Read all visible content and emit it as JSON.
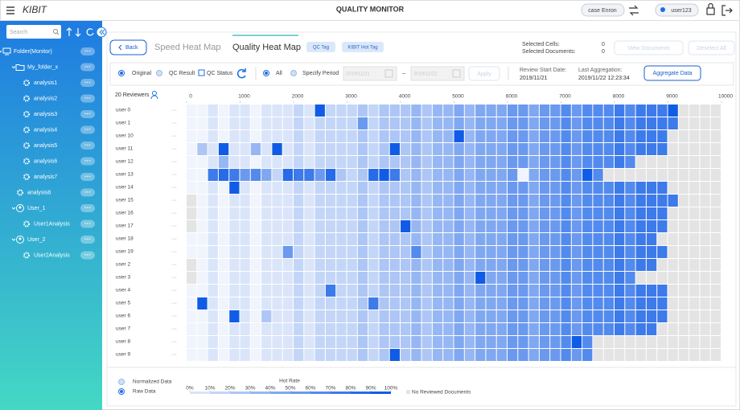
{
  "header": {
    "logo": "KIBIT",
    "title": "QUALITY MONITOR",
    "case": "case Enron",
    "user": "user123"
  },
  "sidebar": {
    "search_placeholder": "Search",
    "more_label": "···",
    "tree": [
      {
        "label": "Folder(Monitor)",
        "icon": "monitor",
        "children": [
          {
            "label": "My_folder_x",
            "icon": "folder",
            "children": [
              {
                "label": "analysis1",
                "icon": "gear"
              },
              {
                "label": "analysis2",
                "icon": "gear"
              },
              {
                "label": "analysis3",
                "icon": "gear"
              },
              {
                "label": "analysis4",
                "icon": "gear"
              },
              {
                "label": "analysis5",
                "icon": "gear"
              },
              {
                "label": "analysis6",
                "icon": "gear"
              },
              {
                "label": "analysis7",
                "icon": "gear"
              }
            ]
          },
          {
            "label": "analysis8",
            "icon": "gear"
          },
          {
            "label": "User_1",
            "icon": "user",
            "children": [
              {
                "label": "User1Analysis",
                "icon": "gear"
              }
            ]
          },
          {
            "label": "User_2",
            "icon": "user",
            "children": [
              {
                "label": "User2Analysis",
                "icon": "gear"
              }
            ]
          }
        ]
      }
    ]
  },
  "toolbar": {
    "back": "Back",
    "tabs": [
      "Speed Heat Map",
      "Quality Heat Map"
    ],
    "active_tab": 1,
    "tags": [
      "QC Tag",
      "KIBIT Hot Tag"
    ],
    "selected_cells_label": "Selected Cells:",
    "selected_cells": 0,
    "selected_documents_label": "Selected Documents:",
    "selected_documents": 0,
    "view_documents": "View Documents",
    "deselect_all": "Deselect All"
  },
  "filters": {
    "source_options": [
      "Original",
      "QC Result"
    ],
    "source_selected": 0,
    "qc_status": "QC Status",
    "period_options": [
      "All",
      "Specify Period"
    ],
    "period_selected": 0,
    "date_from": "2019/11/21",
    "date_separator": "~",
    "date_to": "2019/11/22",
    "apply": "Apply",
    "review_start_label": "Review Start Date:",
    "review_start": "2019/11/21",
    "last_aggregation_label": "Last Aggregation:",
    "last_aggregation": "2019/11/22 12:23:34",
    "aggregate": "Aggregate Data"
  },
  "chart_data": {
    "type": "heatmap",
    "reviewers_label": "20 Reviewers",
    "row_menu_label": "···",
    "xlim": [
      0,
      10000
    ],
    "xticks": [
      0,
      1000,
      2000,
      3000,
      4000,
      5000,
      6000,
      7000,
      8000,
      9000,
      10000
    ],
    "color_low": "#f0f4fc",
    "color_high": "#105ce6",
    "no_data_color": "#e4e4e4",
    "categories": [
      "user 0",
      "user 1",
      "user 10",
      "user 11",
      "user 12",
      "user 13",
      "user 14",
      "user 15",
      "user 16",
      "user 17",
      "user 18",
      "user 19",
      "user 2",
      "user 3",
      "user 4",
      "user 5",
      "user 6",
      "user 7",
      "user 8",
      "user 9"
    ],
    "values": [
      [
        0,
        0,
        10,
        0,
        10,
        10,
        0,
        10,
        10,
        10,
        20,
        10,
        100,
        20,
        20,
        20,
        30,
        20,
        30,
        30,
        30,
        40,
        30,
        40,
        40,
        50,
        40,
        50,
        50,
        50,
        60,
        60,
        50,
        60,
        60,
        70,
        60,
        70,
        70,
        70,
        80,
        70,
        80,
        80,
        80,
        100,
        null,
        null,
        null,
        null
      ],
      [
        0,
        0,
        10,
        0,
        10,
        10,
        0,
        10,
        10,
        10,
        20,
        10,
        20,
        20,
        20,
        20,
        60,
        20,
        30,
        30,
        30,
        40,
        30,
        40,
        40,
        50,
        40,
        50,
        50,
        50,
        60,
        60,
        50,
        60,
        60,
        70,
        60,
        70,
        70,
        70,
        80,
        70,
        80,
        80,
        80,
        80,
        null,
        null,
        null,
        null
      ],
      [
        0,
        0,
        10,
        0,
        10,
        10,
        0,
        10,
        10,
        10,
        20,
        10,
        20,
        20,
        20,
        20,
        30,
        20,
        30,
        30,
        30,
        40,
        30,
        40,
        40,
        100,
        40,
        50,
        50,
        50,
        60,
        60,
        50,
        60,
        60,
        70,
        60,
        70,
        70,
        70,
        80,
        70,
        80,
        80,
        80,
        null,
        null,
        null,
        null,
        null
      ],
      [
        0,
        30,
        10,
        100,
        10,
        10,
        40,
        10,
        100,
        10,
        20,
        10,
        20,
        20,
        20,
        20,
        30,
        20,
        30,
        100,
        30,
        40,
        30,
        40,
        40,
        50,
        40,
        50,
        50,
        50,
        60,
        60,
        50,
        60,
        60,
        70,
        60,
        70,
        70,
        70,
        80,
        70,
        80,
        80,
        80,
        null,
        null,
        null,
        null,
        null
      ],
      [
        0,
        0,
        10,
        40,
        10,
        10,
        0,
        10,
        10,
        10,
        20,
        10,
        20,
        20,
        20,
        20,
        30,
        20,
        30,
        30,
        30,
        40,
        30,
        40,
        40,
        50,
        40,
        50,
        50,
        50,
        60,
        60,
        50,
        60,
        60,
        70,
        60,
        70,
        70,
        70,
        80,
        70,
        null,
        null,
        null,
        null,
        null,
        null,
        null,
        null
      ],
      [
        0,
        0,
        80,
        90,
        80,
        60,
        70,
        50,
        20,
        90,
        80,
        80,
        60,
        90,
        30,
        20,
        30,
        90,
        100,
        80,
        30,
        40,
        30,
        40,
        40,
        50,
        40,
        50,
        50,
        50,
        60,
        0,
        50,
        60,
        60,
        70,
        60,
        100,
        70,
        null,
        null,
        null,
        null,
        null,
        null,
        null,
        null,
        null,
        null,
        null
      ],
      [
        0,
        0,
        10,
        0,
        100,
        10,
        0,
        10,
        10,
        10,
        20,
        10,
        20,
        20,
        20,
        20,
        30,
        20,
        30,
        30,
        30,
        40,
        30,
        40,
        40,
        50,
        40,
        50,
        50,
        50,
        60,
        60,
        50,
        60,
        60,
        70,
        60,
        70,
        70,
        70,
        80,
        70,
        80,
        80,
        80,
        null,
        null,
        null,
        null,
        null
      ],
      [
        null,
        0,
        10,
        0,
        10,
        10,
        0,
        10,
        10,
        10,
        20,
        10,
        20,
        20,
        20,
        20,
        30,
        20,
        30,
        30,
        30,
        40,
        30,
        40,
        40,
        50,
        40,
        50,
        50,
        50,
        60,
        60,
        50,
        60,
        60,
        70,
        60,
        70,
        70,
        70,
        80,
        70,
        80,
        80,
        80,
        80,
        null,
        null,
        null,
        null
      ],
      [
        null,
        0,
        10,
        0,
        10,
        10,
        0,
        10,
        10,
        10,
        20,
        10,
        20,
        20,
        20,
        20,
        30,
        20,
        30,
        30,
        30,
        40,
        30,
        40,
        40,
        50,
        40,
        50,
        50,
        50,
        60,
        60,
        50,
        60,
        60,
        70,
        60,
        70,
        70,
        70,
        80,
        70,
        80,
        80,
        80,
        null,
        null,
        null,
        null,
        null
      ],
      [
        null,
        0,
        10,
        0,
        10,
        10,
        0,
        10,
        10,
        10,
        20,
        10,
        20,
        20,
        20,
        20,
        30,
        20,
        30,
        30,
        100,
        40,
        30,
        40,
        40,
        50,
        40,
        50,
        50,
        50,
        60,
        60,
        50,
        60,
        60,
        70,
        60,
        70,
        70,
        70,
        80,
        70,
        80,
        80,
        80,
        null,
        null,
        null,
        null,
        null
      ],
      [
        0,
        0,
        10,
        0,
        10,
        10,
        0,
        10,
        10,
        10,
        20,
        10,
        20,
        20,
        20,
        20,
        30,
        20,
        30,
        30,
        30,
        40,
        30,
        40,
        40,
        50,
        40,
        50,
        50,
        50,
        60,
        60,
        50,
        60,
        60,
        70,
        60,
        70,
        70,
        70,
        80,
        70,
        80,
        80,
        null,
        null,
        null,
        null,
        null,
        null
      ],
      [
        0,
        0,
        10,
        0,
        10,
        10,
        0,
        10,
        10,
        60,
        20,
        10,
        20,
        20,
        20,
        20,
        30,
        20,
        30,
        30,
        30,
        70,
        30,
        40,
        40,
        50,
        40,
        50,
        50,
        50,
        60,
        60,
        50,
        60,
        60,
        70,
        60,
        70,
        70,
        70,
        80,
        70,
        80,
        80,
        80,
        null,
        null,
        null,
        null,
        null
      ],
      [
        null,
        0,
        10,
        0,
        10,
        10,
        0,
        10,
        10,
        10,
        20,
        10,
        20,
        20,
        20,
        20,
        30,
        20,
        30,
        30,
        30,
        40,
        30,
        40,
        40,
        50,
        40,
        50,
        50,
        50,
        60,
        60,
        50,
        60,
        60,
        70,
        60,
        70,
        70,
        70,
        80,
        70,
        80,
        80,
        null,
        null,
        null,
        null,
        null,
        null
      ],
      [
        null,
        0,
        10,
        0,
        10,
        10,
        0,
        10,
        10,
        10,
        20,
        10,
        20,
        20,
        20,
        20,
        30,
        20,
        30,
        30,
        30,
        40,
        30,
        40,
        40,
        50,
        40,
        100,
        50,
        50,
        60,
        60,
        50,
        60,
        60,
        70,
        60,
        70,
        70,
        70,
        80,
        70,
        null,
        null,
        null,
        null,
        null,
        null,
        null,
        null
      ],
      [
        0,
        0,
        10,
        0,
        10,
        10,
        0,
        10,
        10,
        10,
        20,
        10,
        20,
        80,
        20,
        20,
        30,
        20,
        30,
        30,
        30,
        40,
        30,
        40,
        40,
        50,
        40,
        50,
        50,
        50,
        60,
        60,
        50,
        60,
        60,
        70,
        60,
        70,
        70,
        70,
        80,
        70,
        80,
        80,
        80,
        null,
        null,
        null,
        null,
        null
      ],
      [
        0,
        100,
        10,
        0,
        10,
        10,
        0,
        10,
        10,
        10,
        20,
        10,
        20,
        20,
        20,
        20,
        30,
        80,
        30,
        30,
        30,
        40,
        30,
        40,
        40,
        50,
        40,
        50,
        50,
        50,
        60,
        60,
        50,
        60,
        60,
        70,
        60,
        70,
        70,
        70,
        80,
        70,
        80,
        80,
        80,
        null,
        null,
        null,
        null,
        null
      ],
      [
        0,
        0,
        10,
        0,
        100,
        10,
        0,
        30,
        10,
        10,
        20,
        10,
        20,
        20,
        20,
        20,
        30,
        20,
        30,
        30,
        30,
        40,
        30,
        40,
        40,
        50,
        40,
        50,
        50,
        50,
        60,
        60,
        50,
        60,
        60,
        70,
        60,
        70,
        70,
        70,
        80,
        70,
        80,
        80,
        80,
        null,
        null,
        null,
        null,
        null
      ],
      [
        0,
        0,
        10,
        0,
        10,
        10,
        0,
        10,
        10,
        10,
        20,
        10,
        20,
        20,
        20,
        20,
        30,
        20,
        30,
        30,
        30,
        40,
        30,
        40,
        40,
        50,
        40,
        50,
        50,
        50,
        60,
        60,
        50,
        60,
        60,
        70,
        60,
        70,
        70,
        70,
        80,
        70,
        80,
        80,
        null,
        null,
        null,
        null,
        null,
        null
      ],
      [
        0,
        0,
        10,
        0,
        10,
        10,
        0,
        10,
        10,
        10,
        20,
        10,
        20,
        20,
        20,
        20,
        30,
        20,
        30,
        30,
        30,
        40,
        30,
        40,
        40,
        50,
        40,
        50,
        50,
        50,
        60,
        60,
        50,
        60,
        60,
        70,
        100,
        70,
        null,
        null,
        null,
        null,
        null,
        null,
        null,
        null,
        null,
        null,
        null,
        null
      ],
      [
        0,
        0,
        10,
        0,
        10,
        10,
        0,
        10,
        10,
        10,
        20,
        10,
        20,
        20,
        20,
        20,
        30,
        20,
        30,
        100,
        30,
        40,
        30,
        40,
        40,
        50,
        40,
        50,
        50,
        50,
        60,
        60,
        50,
        60,
        60,
        70,
        60,
        70,
        null,
        null,
        null,
        null,
        null,
        null,
        null,
        null,
        null,
        null,
        null,
        null
      ]
    ],
    "legend": {
      "title": "Hot Rate",
      "ticks": [
        {
          "value": 0,
          "label": "0%"
        },
        {
          "value": 10,
          "label": "10%"
        },
        {
          "value": 20,
          "label": "20%"
        },
        {
          "value": 30,
          "label": "30%"
        },
        {
          "value": 40,
          "label": "40%"
        },
        {
          "value": 50,
          "label": "50%"
        },
        {
          "value": 60,
          "label": "60%"
        },
        {
          "value": 70,
          "label": "70%"
        },
        {
          "value": 80,
          "label": "80%"
        },
        {
          "value": 90,
          "label": "90%"
        },
        {
          "value": 100,
          "label": "100%"
        }
      ],
      "no_data_label": "No Reviewed Documents"
    }
  },
  "footer": {
    "data_options": [
      "Normalized Data",
      "Raw Data"
    ],
    "data_selected": 1
  }
}
